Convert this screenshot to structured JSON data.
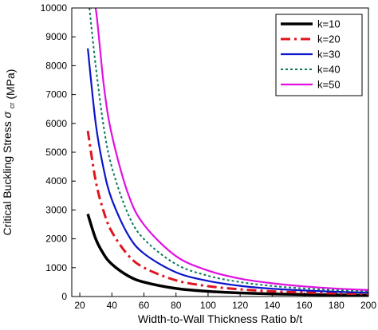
{
  "chart_data": {
    "type": "line",
    "xlabel": "Width-to-Wall Thickness Ratio b/t",
    "ylabel": {
      "main": "Critical Buckling Stress",
      "symbol": "σ",
      "subscript": "cr",
      "unit": "(MPa)"
    },
    "xlim": [
      15,
      200
    ],
    "ylim": [
      0,
      10000
    ],
    "xticks": [
      20,
      40,
      60,
      80,
      100,
      120,
      140,
      160,
      180,
      200
    ],
    "yticks": [
      0,
      1000,
      2000,
      3000,
      4000,
      5000,
      6000,
      7000,
      8000,
      9000,
      10000
    ],
    "grid": false,
    "legend_position": "top-right",
    "series": [
      {
        "name": "k=10",
        "color": "#000000",
        "style": "solid",
        "x": [
          25,
          30,
          35,
          40,
          50,
          60,
          80,
          100,
          120,
          140,
          160,
          180,
          200
        ],
        "y": [
          2860,
          1990,
          1460,
          1120,
          720,
          500,
          280,
          180,
          125,
          90,
          70,
          55,
          45
        ]
      },
      {
        "name": "k=20",
        "color": "#e0141e",
        "style": "dashdot",
        "x": [
          25,
          30,
          35,
          40,
          50,
          60,
          80,
          100,
          120,
          140,
          160,
          180,
          200
        ],
        "y": [
          5740,
          3990,
          2930,
          2240,
          1440,
          1000,
          560,
          360,
          250,
          180,
          140,
          110,
          90
        ]
      },
      {
        "name": "k=30",
        "color": "#0a14c8",
        "style": "solid",
        "x": [
          25,
          30,
          35,
          40,
          50,
          60,
          80,
          100,
          120,
          140,
          160,
          180,
          200
        ],
        "y": [
          8600,
          5970,
          4390,
          3360,
          2150,
          1490,
          840,
          540,
          370,
          270,
          210,
          165,
          135
        ]
      },
      {
        "name": "k=40",
        "color": "#0a7a5a",
        "style": "dotted",
        "x": [
          26,
          30,
          35,
          40,
          50,
          60,
          80,
          100,
          120,
          140,
          160,
          180,
          200
        ],
        "y": [
          10000,
          7960,
          5850,
          4480,
          2870,
          1990,
          1120,
          720,
          500,
          365,
          280,
          220,
          180
        ]
      },
      {
        "name": "k=50",
        "color": "#e010e0",
        "style": "solid",
        "x": [
          27,
          30,
          35,
          40,
          50,
          60,
          80,
          100,
          120,
          140,
          160,
          180,
          200
        ],
        "y": [
          10000,
          9950,
          7310,
          5600,
          3580,
          2490,
          1400,
          900,
          620,
          460,
          350,
          275,
          225
        ]
      }
    ]
  }
}
